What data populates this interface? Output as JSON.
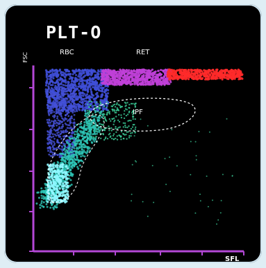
{
  "chart_data": {
    "type": "scatter",
    "title": "PLT-O",
    "xlabel": "SFL",
    "ylabel": "FSC",
    "xlim": [
      0,
      100
    ],
    "ylim": [
      0,
      100
    ],
    "regions": [
      {
        "name": "RBC",
        "color": "#3f4fd8"
      },
      {
        "name": "RET",
        "color": "#c040d8"
      },
      {
        "name": "IPF",
        "color": "#3ccf9a"
      }
    ],
    "series": [
      {
        "color": "#ff2a2a"
      },
      {
        "color": "#54e0d0"
      }
    ]
  }
}
